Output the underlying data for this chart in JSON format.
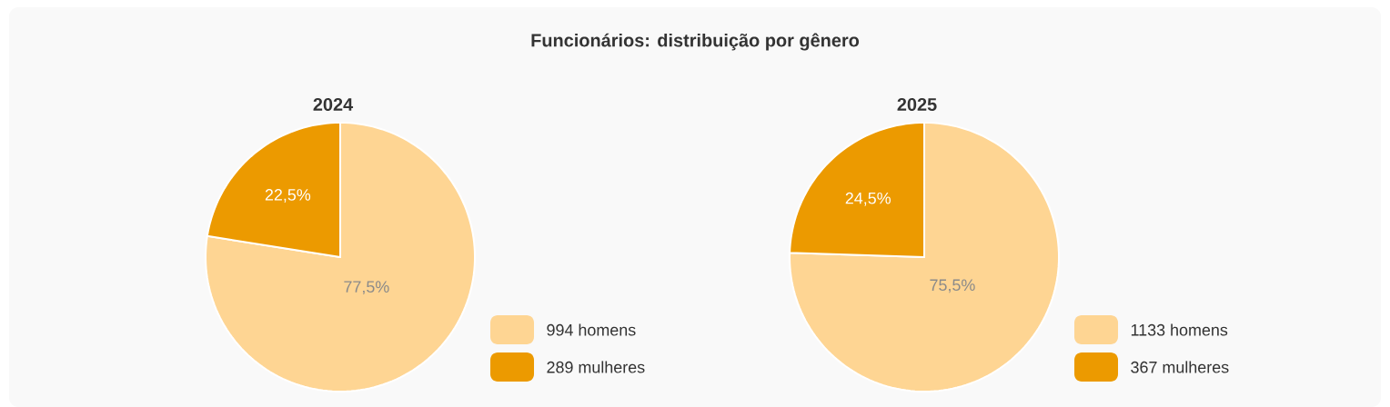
{
  "chart_data": [
    {
      "type": "pie",
      "title": "2024",
      "annotations": [
        "Funcionários: distribuição por gênero"
      ],
      "categories": [
        "994 homens",
        "289 mulheres"
      ],
      "values": [
        77.5,
        22.5
      ],
      "colors": [
        "#fed593",
        "#ec9a00"
      ],
      "value_labels": [
        "77,5%",
        "22,5%"
      ],
      "legend": "bottom right"
    },
    {
      "type": "pie",
      "title": "2025",
      "categories": [
        "1133 homens",
        "367 mulheres"
      ],
      "values": [
        75.5,
        24.5
      ],
      "colors": [
        "#fed593",
        "#ec9a00"
      ],
      "value_labels": [
        "75,5%",
        "24,5%"
      ],
      "legend": "bottom right"
    }
  ]
}
